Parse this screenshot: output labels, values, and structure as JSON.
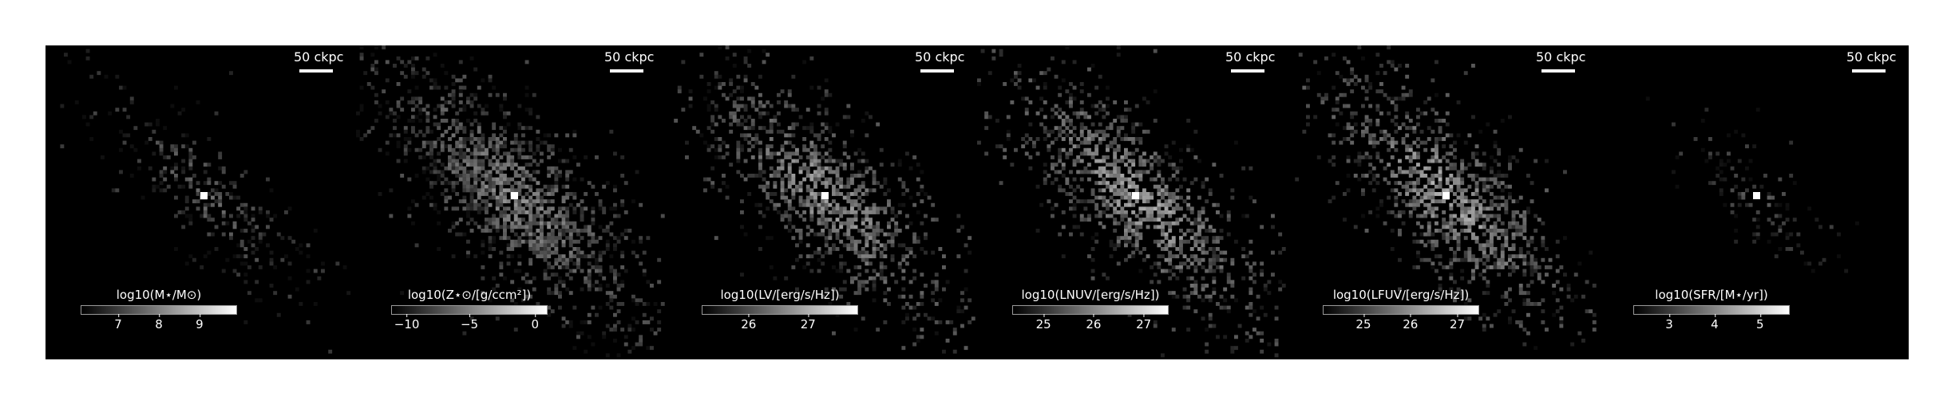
{
  "panels": [
    {
      "id": "mstar",
      "scale_label": "50 ckpc",
      "colorbar_title": "log10(M⋆/M⊙)",
      "ticks": [
        {
          "label": "7",
          "pos": 0.24
        },
        {
          "label": "8",
          "pos": 0.5
        },
        {
          "label": "9",
          "pos": 0.76
        }
      ],
      "density": 0.32,
      "brightness": 0.28,
      "spread": 0.9,
      "center_peak": 1.0
    },
    {
      "id": "metallicity",
      "scale_label": "50 ckpc",
      "colorbar_title": "log10(Z⋆⊙/[g/ccm²])",
      "ticks": [
        {
          "label": "−10",
          "pos": 0.1
        },
        {
          "label": "−5",
          "pos": 0.5
        },
        {
          "label": "0",
          "pos": 0.92
        }
      ],
      "density": 0.75,
      "brightness": 0.42,
      "spread": 1.25,
      "center_peak": 1.0
    },
    {
      "id": "lv",
      "scale_label": "50 ckpc",
      "colorbar_title": "log10(LV/[erg/s/Hz])",
      "ticks": [
        {
          "label": "26",
          "pos": 0.3
        },
        {
          "label": "27",
          "pos": 0.68
        }
      ],
      "density": 0.62,
      "brightness": 0.5,
      "spread": 1.2,
      "center_peak": 1.0
    },
    {
      "id": "lnuv",
      "scale_label": "50 ckpc",
      "colorbar_title": "log10(LNUV/[erg/s/Hz])",
      "ticks": [
        {
          "label": "25",
          "pos": 0.2
        },
        {
          "label": "26",
          "pos": 0.52
        },
        {
          "label": "27",
          "pos": 0.84
        }
      ],
      "density": 0.62,
      "brightness": 0.55,
      "spread": 1.2,
      "center_peak": 1.0
    },
    {
      "id": "lfuv",
      "scale_label": "50 ckpc",
      "colorbar_title": "log10(LFUV/[erg/s/Hz])",
      "ticks": [
        {
          "label": "25",
          "pos": 0.26
        },
        {
          "label": "26",
          "pos": 0.56
        },
        {
          "label": "27",
          "pos": 0.86
        }
      ],
      "density": 0.62,
      "brightness": 0.55,
      "spread": 1.2,
      "center_peak": 1.0
    },
    {
      "id": "sfr",
      "scale_label": "50 ckpc",
      "colorbar_title": "log10(SFR/[M⋆/yr])",
      "ticks": [
        {
          "label": "3",
          "pos": 0.23
        },
        {
          "label": "4",
          "pos": 0.52
        },
        {
          "label": "5",
          "pos": 0.81
        }
      ],
      "density": 0.22,
      "brightness": 0.22,
      "spread": 0.7,
      "center_peak": 1.0
    }
  ]
}
